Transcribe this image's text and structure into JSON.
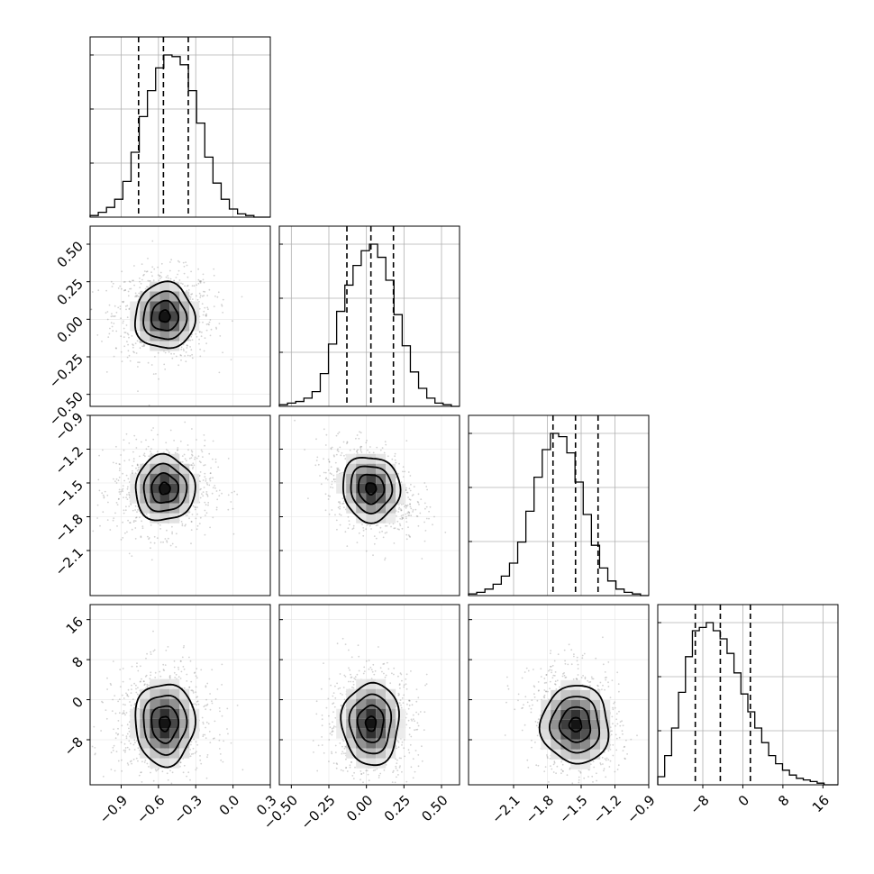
{
  "chart_data": {
    "type": "corner",
    "grid": true,
    "colors": {
      "hist": "#000000",
      "quantile": "#000000",
      "grid": "#b0b0b0",
      "points": "#7f7f7f"
    },
    "params": [
      {
        "range": [
          -1.15,
          0.3
        ],
        "ticks": [
          -0.9,
          -0.6,
          -0.3,
          0.0,
          0.3
        ],
        "tick_labels": [
          "−0.9",
          "−0.6",
          "−0.3",
          "0.0",
          "0.3"
        ],
        "quantiles": [
          -0.76,
          -0.56,
          -0.36
        ],
        "mean": -0.56,
        "std": 0.2,
        "hist_counts": [
          1,
          3,
          6,
          11,
          22,
          40,
          62,
          78,
          92,
          100,
          99,
          94,
          78,
          58,
          37,
          21,
          11,
          5,
          2,
          1,
          0,
          0
        ]
      },
      {
        "range": [
          -0.58,
          0.62
        ],
        "ticks": [
          -0.5,
          -0.25,
          0.0,
          0.25,
          0.5
        ],
        "tick_labels": [
          "−0.50",
          "−0.25",
          "0.00",
          "0.25",
          "0.50"
        ],
        "quantiles": [
          -0.13,
          0.03,
          0.18
        ],
        "mean": 0.03,
        "std": 0.15,
        "hist_counts": [
          1,
          2,
          3,
          5,
          9,
          20,
          38,
          58,
          74,
          86,
          95,
          99,
          91,
          77,
          56,
          37,
          21,
          11,
          5,
          2,
          1,
          0
        ]
      },
      {
        "range": [
          -2.5,
          -0.9
        ],
        "ticks": [
          -2.1,
          -1.8,
          -1.5,
          -1.2,
          -0.9
        ],
        "tick_labels": [
          "−2.1",
          "−1.8",
          "−1.5",
          "−1.2",
          "−0.9"
        ],
        "quantiles": [
          -1.75,
          -1.55,
          -1.35
        ],
        "mean": -1.55,
        "std": 0.2,
        "hist_counts": [
          1,
          2,
          4,
          7,
          12,
          20,
          33,
          52,
          73,
          90,
          100,
          98,
          88,
          70,
          50,
          31,
          17,
          9,
          4,
          2,
          1,
          0
        ]
      },
      {
        "range": [
          -17,
          19
        ],
        "ticks": [
          -8,
          0,
          8,
          16
        ],
        "tick_labels": [
          "−8",
          "0",
          "8",
          "16"
        ],
        "quantiles": [
          -9.5,
          -4.5,
          1.5
        ],
        "mean": -4.5,
        "std": 5.5,
        "hist_counts": [
          5,
          18,
          35,
          57,
          79,
          95,
          97,
          100,
          95,
          90,
          81,
          69,
          56,
          45,
          35,
          26,
          18,
          13,
          9,
          6,
          4,
          3,
          2,
          1,
          0,
          0
        ]
      }
    ],
    "pairs": [
      {
        "x": 0,
        "y": 1,
        "cx": -0.55,
        "cy": 0.02,
        "rx": 0.24,
        "ry": 0.22,
        "corr": 0.0
      },
      {
        "x": 0,
        "y": 2,
        "cx": -0.55,
        "cy": -1.55,
        "rx": 0.24,
        "ry": 0.29,
        "corr": 0.05
      },
      {
        "x": 1,
        "y": 2,
        "cx": 0.03,
        "cy": -1.55,
        "rx": 0.19,
        "ry": 0.29,
        "corr": -0.3
      },
      {
        "x": 0,
        "y": 3,
        "cx": -0.55,
        "cy": -4.8,
        "rx": 0.24,
        "ry": 8.2,
        "corr": 0.0
      },
      {
        "x": 1,
        "y": 3,
        "cx": 0.03,
        "cy": -4.8,
        "rx": 0.19,
        "ry": 8.2,
        "corr": 0.0
      },
      {
        "x": 2,
        "y": 3,
        "cx": -1.55,
        "cy": -5.0,
        "rx": 0.3,
        "ry": 7.8,
        "corr": -0.15
      }
    ]
  }
}
